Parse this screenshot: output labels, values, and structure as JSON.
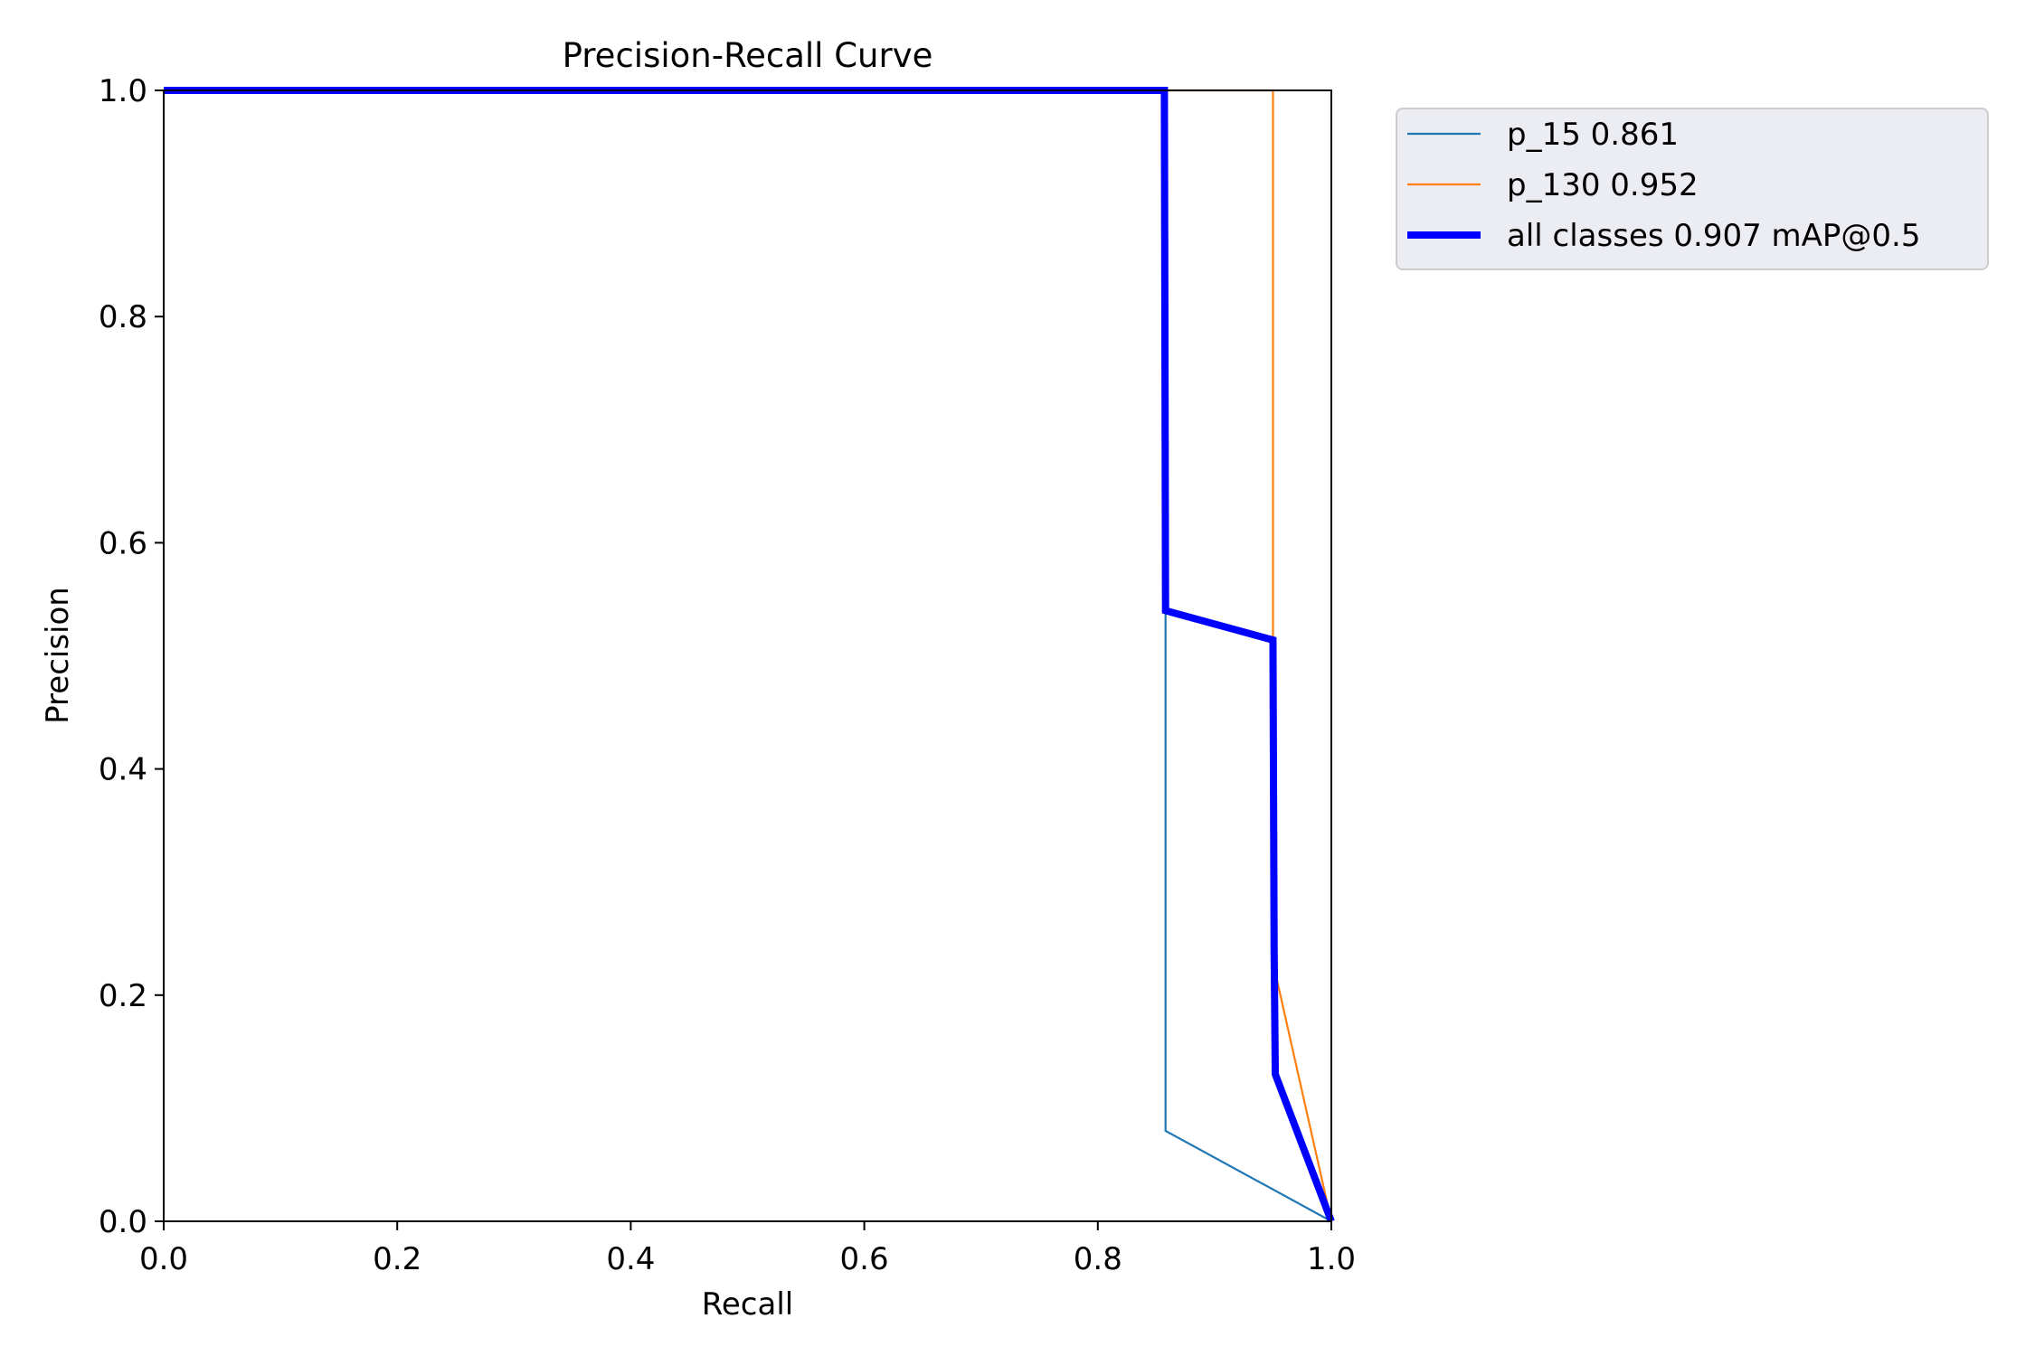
{
  "chart_data": {
    "type": "line",
    "title": "Precision-Recall Curve",
    "xlabel": "Recall",
    "ylabel": "Precision",
    "xlim": [
      0,
      1
    ],
    "ylim": [
      0,
      1
    ],
    "xticks": [
      "0.0",
      "0.2",
      "0.4",
      "0.6",
      "0.8",
      "1.0"
    ],
    "yticks": [
      "0.0",
      "0.2",
      "0.4",
      "0.6",
      "0.8",
      "1.0"
    ],
    "grid": false,
    "legend_position": "outside-top-right",
    "series": [
      {
        "name": "p_15 0.861",
        "color": "#1f77b4",
        "style": "thin",
        "x": [
          0.0,
          0.857,
          0.857,
          0.858,
          0.858,
          1.0
        ],
        "y": [
          1.0,
          1.0,
          0.54,
          0.54,
          0.08,
          0.0
        ]
      },
      {
        "name": "p_130 0.952",
        "color": "#ff7f0e",
        "style": "thin",
        "x": [
          0.0,
          0.95,
          0.95,
          0.952,
          1.0
        ],
        "y": [
          1.0,
          1.0,
          0.51,
          0.22,
          0.0
        ]
      },
      {
        "name": "all classes 0.907 mAP@0.5",
        "color": "#0000ff",
        "style": "thick",
        "x": [
          0.0,
          0.857,
          0.858,
          0.95,
          0.951,
          0.952,
          1.0
        ],
        "y": [
          1.0,
          1.0,
          0.54,
          0.514,
          0.24,
          0.13,
          0.0
        ]
      }
    ]
  }
}
